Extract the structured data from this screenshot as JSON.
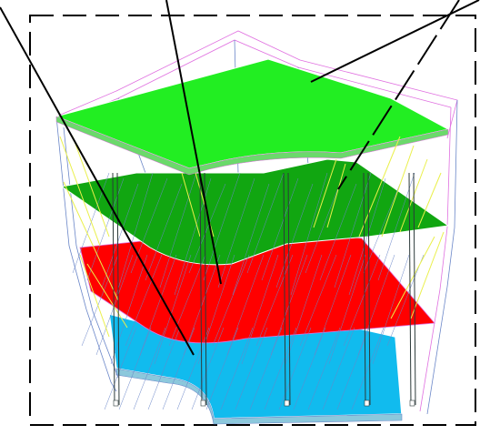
{
  "figure": {
    "colors": {
      "background": "#ffffff",
      "frame": "#000000",
      "leader": "#000000",
      "top_slab": "#22ee22",
      "upper_slab": "#11a611",
      "middle_slab": "#ff0000",
      "bottom_slab": "#11bbee",
      "bottom_slab_shade": "#8cc8dc",
      "wire_magenta": "#e070e0",
      "wire_blue": "#6a86c8",
      "wire_yellow": "#eaf04a",
      "column": "#2c3a3a"
    },
    "layers": [
      {
        "key": "top",
        "fill": "top_slab"
      },
      {
        "key": "upper",
        "fill": "upper_slab"
      },
      {
        "key": "middle",
        "fill": "middle_slab"
      },
      {
        "key": "bottom",
        "fill": "bottom_slab"
      }
    ],
    "frame_style": "dashed",
    "leader_count": 4
  }
}
